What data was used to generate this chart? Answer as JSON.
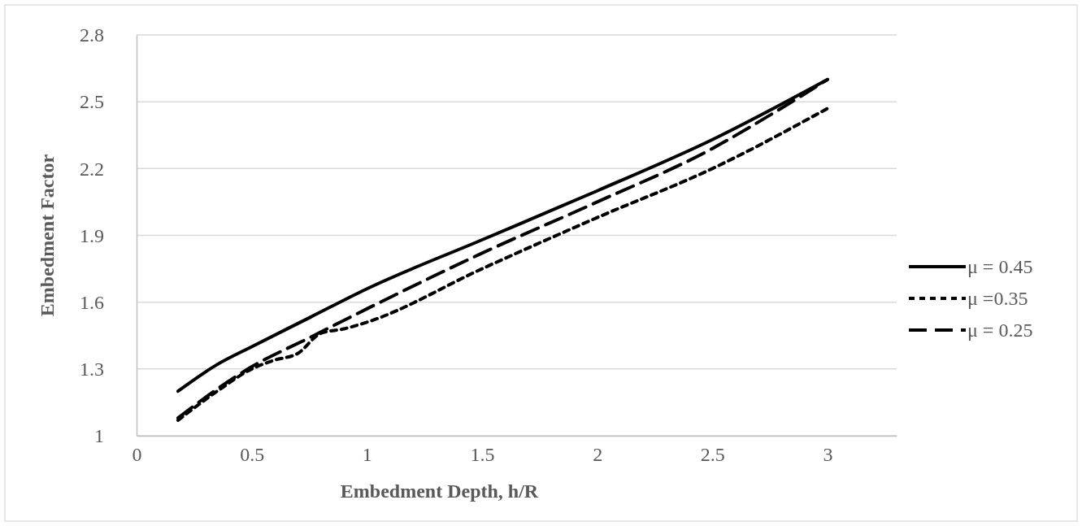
{
  "chart_data": {
    "type": "line",
    "xlabel": "Embedment Depth, h/R",
    "ylabel": "Embedment Factor",
    "xlim": [
      0,
      3.3
    ],
    "xticks": [
      0,
      0.5,
      1,
      1.5,
      2,
      2.5,
      3
    ],
    "ylim": [
      1,
      2.8
    ],
    "yticks": [
      1,
      1.3,
      1.6,
      1.9,
      2.2,
      2.5,
      2.8
    ],
    "grid": "y",
    "legend": "right",
    "series": [
      {
        "name": "μ = 0.45",
        "color": "#000000",
        "line_style": "solid",
        "x": [
          0.18,
          0.35,
          0.5,
          0.75,
          1,
          1.5,
          2,
          2.5,
          3
        ],
        "values": [
          1.2,
          1.32,
          1.4,
          1.53,
          1.66,
          1.88,
          2.1,
          2.33,
          2.6
        ]
      },
      {
        "name": "μ =0.35",
        "color": "#000000",
        "line_style": "dotted",
        "x": [
          0.18,
          0.35,
          0.5,
          0.6,
          0.7,
          0.8,
          0.9,
          1,
          1.5,
          2,
          2.5,
          3
        ],
        "values": [
          1.07,
          1.2,
          1.3,
          1.34,
          1.37,
          1.46,
          1.48,
          1.51,
          1.75,
          1.98,
          2.2,
          2.47
        ]
      },
      {
        "name": "μ = 0.25",
        "color": "#000000",
        "line_style": "dashed",
        "x": [
          0.18,
          0.35,
          0.5,
          0.75,
          1,
          1.5,
          2,
          2.5,
          2.75,
          3
        ],
        "values": [
          1.08,
          1.21,
          1.31,
          1.44,
          1.57,
          1.82,
          2.05,
          2.29,
          2.44,
          2.6
        ]
      }
    ]
  }
}
